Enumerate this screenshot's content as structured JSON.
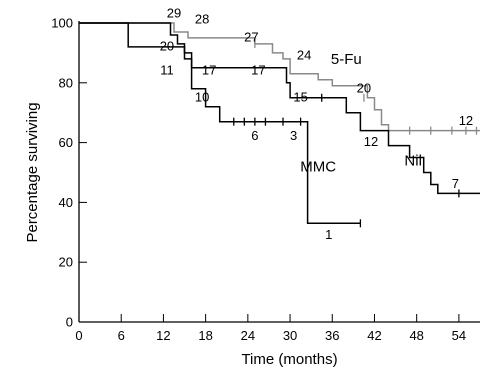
{
  "chart_data": {
    "type": "line",
    "step": true,
    "xlabel": "Time (months)",
    "ylabel": "Percentage surviving",
    "xlim": [
      0,
      57
    ],
    "ylim": [
      0,
      100
    ],
    "x_ticks": [
      0,
      6,
      12,
      18,
      24,
      30,
      36,
      42,
      48,
      54
    ],
    "y_ticks": [
      0,
      20,
      40,
      60,
      80,
      100
    ],
    "grid": false,
    "series": [
      {
        "name": "5-Fu",
        "color": "#8a8a8a",
        "points": [
          [
            0,
            100
          ],
          [
            13.5,
            100
          ],
          [
            13.5,
            97
          ],
          [
            15.5,
            97
          ],
          [
            15.5,
            95
          ],
          [
            25,
            95
          ],
          [
            25,
            93
          ],
          [
            27.5,
            93
          ],
          [
            27.5,
            90
          ],
          [
            29,
            90
          ],
          [
            29,
            88
          ],
          [
            30,
            88
          ],
          [
            30,
            83
          ],
          [
            34,
            83
          ],
          [
            34,
            81
          ],
          [
            36,
            81
          ],
          [
            36,
            79
          ],
          [
            41,
            79
          ],
          [
            41,
            75
          ],
          [
            42,
            75
          ],
          [
            42,
            71
          ],
          [
            43,
            71
          ],
          [
            43,
            66
          ],
          [
            44,
            66
          ],
          [
            44,
            64
          ],
          [
            57,
            64
          ]
        ],
        "censors": [
          [
            25,
            93
          ],
          [
            40.5,
            75
          ],
          [
            47,
            64
          ],
          [
            50,
            64
          ],
          [
            53,
            64
          ],
          [
            55,
            64
          ],
          [
            56.5,
            64
          ]
        ]
      },
      {
        "name": "Nil",
        "color": "#000000",
        "points": [
          [
            0,
            100
          ],
          [
            13,
            100
          ],
          [
            13,
            96
          ],
          [
            14,
            96
          ],
          [
            14,
            93
          ],
          [
            15,
            93
          ],
          [
            15,
            90
          ],
          [
            16,
            90
          ],
          [
            16,
            85
          ],
          [
            29.5,
            85
          ],
          [
            29.5,
            80
          ],
          [
            30,
            80
          ],
          [
            30,
            75
          ],
          [
            38,
            75
          ],
          [
            38,
            70
          ],
          [
            40,
            70
          ],
          [
            40,
            64
          ],
          [
            44,
            64
          ],
          [
            44,
            59
          ],
          [
            47,
            59
          ],
          [
            47,
            55
          ],
          [
            49,
            55
          ],
          [
            49,
            50
          ],
          [
            50,
            50
          ],
          [
            50,
            46
          ],
          [
            51,
            46
          ],
          [
            51,
            43
          ],
          [
            57,
            43
          ]
        ],
        "censors": [
          [
            34.5,
            75
          ],
          [
            54,
            43
          ]
        ]
      },
      {
        "name": "MMC",
        "color": "#000000",
        "points": [
          [
            0,
            100
          ],
          [
            7,
            100
          ],
          [
            7,
            92
          ],
          [
            15,
            92
          ],
          [
            15,
            88
          ],
          [
            16,
            88
          ],
          [
            16,
            78
          ],
          [
            18,
            78
          ],
          [
            18,
            72
          ],
          [
            20,
            72
          ],
          [
            20,
            67
          ],
          [
            32.5,
            67
          ],
          [
            32.5,
            33
          ],
          [
            40,
            33
          ]
        ],
        "censors": [
          [
            22,
            67
          ],
          [
            23.5,
            67
          ],
          [
            25,
            67
          ],
          [
            26.5,
            67
          ],
          [
            29,
            67
          ],
          [
            31.5,
            67
          ],
          [
            40,
            33
          ]
        ]
      }
    ],
    "annotations": [
      {
        "text": "29",
        "x": 13.5,
        "y": 103.5
      },
      {
        "text": "28",
        "x": 17.5,
        "y": 101.5
      },
      {
        "text": "27",
        "x": 24.5,
        "y": 95.5
      },
      {
        "text": "24",
        "x": 32,
        "y": 89.5
      },
      {
        "text": "20",
        "x": 12.5,
        "y": 92.5
      },
      {
        "text": "11",
        "x": 12.5,
        "y": 84.5
      },
      {
        "text": "17",
        "x": 18.5,
        "y": 84.5
      },
      {
        "text": "17",
        "x": 25.5,
        "y": 84.5
      },
      {
        "text": "10",
        "x": 17.5,
        "y": 75.5
      },
      {
        "text": "15",
        "x": 31.5,
        "y": 75.5
      },
      {
        "text": "20",
        "x": 40.5,
        "y": 78.5
      },
      {
        "text": "12",
        "x": 41.5,
        "y": 60.5
      },
      {
        "text": "12",
        "x": 55,
        "y": 67.5
      },
      {
        "text": "6",
        "x": 25,
        "y": 62.5
      },
      {
        "text": "3",
        "x": 30.5,
        "y": 62.5
      },
      {
        "text": "7",
        "x": 53.5,
        "y": 46.5
      },
      {
        "text": "1",
        "x": 35.5,
        "y": 29.5
      }
    ],
    "series_labels": [
      {
        "text": "5-Fu",
        "series": "5-Fu",
        "x": 38,
        "y": 88
      },
      {
        "text": "Nil",
        "series": "Nil",
        "x": 47.5,
        "y": 54
      },
      {
        "text": "MMC",
        "series": "MMC",
        "x": 34,
        "y": 52
      }
    ]
  }
}
